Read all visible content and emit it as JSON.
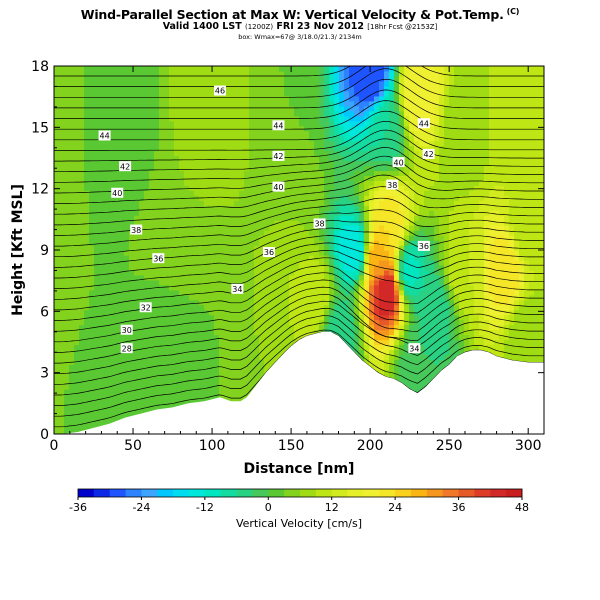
{
  "header": {
    "title": "Wind-Parallel Section at Max W: Vertical Velocity & Pot.Temp.",
    "title_mark": "(C)",
    "valid_prefix": "Valid 1400 LST",
    "valid_paren": "(1200Z)",
    "valid_date": "FRI 23 Nov 2012",
    "valid_suffix": "[18hr Fcst @2153Z]",
    "subtitle": "box: Wmax=67@ 3/18.0/21.3/ 2134m"
  },
  "colors": {
    "plot_frame": "#000000",
    "terrain": "#ffffff",
    "contour": "#000000"
  },
  "chart_data": {
    "type": "heatmap",
    "title": "Wind-Parallel Section at Max W: Vertical Velocity & Pot.Temp.",
    "xlabel": "Distance [nm]",
    "ylabel": "Height [Kft MSL]",
    "xlim": [
      0,
      310
    ],
    "ylim": [
      0,
      18
    ],
    "xticks": [
      0,
      50,
      100,
      150,
      200,
      250,
      300
    ],
    "yticks": [
      0,
      3,
      6,
      9,
      12,
      15,
      18
    ],
    "colorbar": {
      "label": "Vertical Velocity [cm/s]",
      "ticks": [
        -36,
        -24,
        -12,
        0,
        12,
        24,
        36,
        48
      ],
      "levels": [
        -36,
        -33,
        -30,
        -27,
        -24,
        -21,
        -18,
        -15,
        -12,
        -9,
        -6,
        -3,
        0,
        3,
        6,
        9,
        12,
        15,
        18,
        21,
        24,
        27,
        30,
        33,
        36,
        39,
        42,
        45,
        48
      ],
      "colors": [
        "#0000cd",
        "#0a28e6",
        "#1e55ff",
        "#2d82ff",
        "#3ca5ff",
        "#00c8ff",
        "#00dcf0",
        "#00e8dc",
        "#00e6c0",
        "#14dca0",
        "#28d282",
        "#46c85a",
        "#5ac832",
        "#82d21e",
        "#a0dc14",
        "#bee614",
        "#d2eb1e",
        "#e6f028",
        "#f0f032",
        "#f5e628",
        "#fad21e",
        "#fab414",
        "#f5961e",
        "#f07828",
        "#e65a28",
        "#dc3c28",
        "#d22828",
        "#c81e1e"
      ]
    },
    "terrain_profile": {
      "x": [
        0,
        5,
        15,
        25,
        35,
        45,
        55,
        65,
        75,
        85,
        95,
        105,
        112,
        118,
        122,
        126,
        130,
        134,
        140,
        146,
        150,
        155,
        160,
        165,
        170,
        175,
        180,
        185,
        190,
        195,
        200,
        205,
        210,
        215,
        220,
        225,
        230,
        235,
        240,
        245,
        250,
        255,
        260,
        265,
        270,
        275,
        280,
        290,
        300,
        310
      ],
      "y": [
        0,
        0,
        0.1,
        0.3,
        0.5,
        0.8,
        1.0,
        1.2,
        1.3,
        1.5,
        1.6,
        1.8,
        1.6,
        1.6,
        1.8,
        2.2,
        2.6,
        3.0,
        3.5,
        4.0,
        4.3,
        4.6,
        4.8,
        4.9,
        5.0,
        5.0,
        4.8,
        4.4,
        4.0,
        3.6,
        3.3,
        3.0,
        2.8,
        2.7,
        2.5,
        2.2,
        2.0,
        2.3,
        2.7,
        3.1,
        3.4,
        3.8,
        4.0,
        4.1,
        4.1,
        4.0,
        3.8,
        3.6,
        3.5,
        3.5
      ]
    },
    "potential_temperature_contours": {
      "labels": [
        {
          "x": 105,
          "y": 16.8,
          "value": "46"
        },
        {
          "x": 32,
          "y": 14.6,
          "value": "44"
        },
        {
          "x": 142,
          "y": 15.1,
          "value": "44"
        },
        {
          "x": 234,
          "y": 15.2,
          "value": "44"
        },
        {
          "x": 45,
          "y": 13.1,
          "value": "42"
        },
        {
          "x": 142,
          "y": 13.6,
          "value": "42"
        },
        {
          "x": 237,
          "y": 13.7,
          "value": "42"
        },
        {
          "x": 40,
          "y": 11.8,
          "value": "40"
        },
        {
          "x": 142,
          "y": 12.1,
          "value": "40"
        },
        {
          "x": 218,
          "y": 13.3,
          "value": "40"
        },
        {
          "x": 52,
          "y": 10.0,
          "value": "38"
        },
        {
          "x": 168,
          "y": 10.3,
          "value": "38"
        },
        {
          "x": 214,
          "y": 12.2,
          "value": "38"
        },
        {
          "x": 66,
          "y": 8.6,
          "value": "36"
        },
        {
          "x": 136,
          "y": 8.9,
          "value": "36"
        },
        {
          "x": 234,
          "y": 9.2,
          "value": "36"
        },
        {
          "x": 116,
          "y": 7.1,
          "value": "34"
        },
        {
          "x": 228,
          "y": 4.2,
          "value": "34"
        },
        {
          "x": 58,
          "y": 6.2,
          "value": "32"
        },
        {
          "x": 46,
          "y": 5.1,
          "value": "30"
        },
        {
          "x": 46,
          "y": 4.2,
          "value": "28"
        }
      ]
    },
    "velocity_features": [
      {
        "x": 0,
        "y": 16,
        "value": 6
      },
      {
        "x": 40,
        "y": 16,
        "value": 0
      },
      {
        "x": 100,
        "y": 17,
        "value": 9
      },
      {
        "x": 150,
        "y": 17,
        "value": 3
      },
      {
        "x": 200,
        "y": 17.5,
        "value": -30
      },
      {
        "x": 210,
        "y": 15,
        "value": -6
      },
      {
        "x": 230,
        "y": 16.5,
        "value": 21
      },
      {
        "x": 260,
        "y": 15,
        "value": 6
      },
      {
        "x": 290,
        "y": 15,
        "value": 12
      },
      {
        "x": 30,
        "y": 10,
        "value": 3
      },
      {
        "x": 90,
        "y": 10,
        "value": 6
      },
      {
        "x": 150,
        "y": 11,
        "value": 6
      },
      {
        "x": 190,
        "y": 9,
        "value": -15
      },
      {
        "x": 205,
        "y": 8.5,
        "value": 30
      },
      {
        "x": 210,
        "y": 7,
        "value": 45
      },
      {
        "x": 212,
        "y": 10,
        "value": 24
      },
      {
        "x": 225,
        "y": 8,
        "value": -10
      },
      {
        "x": 240,
        "y": 6,
        "value": -6
      },
      {
        "x": 260,
        "y": 8,
        "value": 12
      },
      {
        "x": 285,
        "y": 8,
        "value": 24
      },
      {
        "x": 300,
        "y": 10,
        "value": 9
      },
      {
        "x": 30,
        "y": 3,
        "value": 3
      },
      {
        "x": 80,
        "y": 3.5,
        "value": 0
      },
      {
        "x": 130,
        "y": 4,
        "value": 6
      },
      {
        "x": 165,
        "y": 6.5,
        "value": 12
      },
      {
        "x": 180,
        "y": 5,
        "value": -6
      },
      {
        "x": 230,
        "y": 3.5,
        "value": -3
      },
      {
        "x": 300,
        "y": 5,
        "value": 6
      }
    ]
  }
}
